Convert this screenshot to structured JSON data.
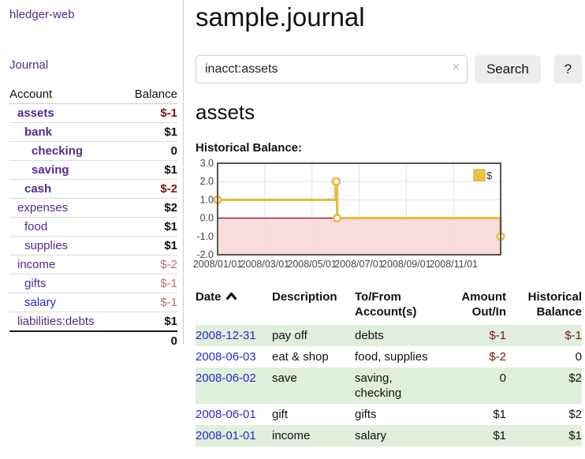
{
  "app": {
    "brand": "hledger-web",
    "nav_journal": "Journal"
  },
  "sidebar": {
    "header": {
      "account": "Account",
      "balance": "Balance"
    },
    "accounts": [
      {
        "name": "assets",
        "indent": 1,
        "bold": true,
        "balance": "$-1",
        "balance_class": "neg-strong",
        "link_class": ""
      },
      {
        "name": "bank",
        "indent": 2,
        "bold": true,
        "balance": "$1",
        "balance_class": "",
        "link_class": ""
      },
      {
        "name": "checking",
        "indent": 3,
        "bold": true,
        "balance": "0",
        "balance_class": "",
        "link_class": ""
      },
      {
        "name": "saving",
        "indent": 3,
        "bold": true,
        "balance": "$1",
        "balance_class": "",
        "link_class": ""
      },
      {
        "name": "cash",
        "indent": 2,
        "bold": true,
        "balance": "$-2",
        "balance_class": "neg-strong",
        "link_class": ""
      },
      {
        "name": "expenses",
        "indent": 1,
        "bold": false,
        "balance": "$2",
        "balance_class": "",
        "link_class": ""
      },
      {
        "name": "food",
        "indent": 2,
        "bold": false,
        "balance": "$1",
        "balance_class": "",
        "link_class": ""
      },
      {
        "name": "supplies",
        "indent": 2,
        "bold": false,
        "balance": "$1",
        "balance_class": "",
        "link_class": ""
      },
      {
        "name": "income",
        "indent": 1,
        "bold": false,
        "balance": "$-2",
        "balance_class": "neg-light",
        "link_class": ""
      },
      {
        "name": "gifts",
        "indent": 2,
        "bold": false,
        "balance": "$-1",
        "balance_class": "neg-light",
        "link_class": ""
      },
      {
        "name": "salary",
        "indent": 2,
        "bold": false,
        "balance": "$-1",
        "balance_class": "neg-light",
        "link_class": "unvisited"
      },
      {
        "name": "liabilities:debts",
        "indent": 1,
        "bold": false,
        "balance": "$1",
        "balance_class": "",
        "link_class": ""
      }
    ],
    "total": "0"
  },
  "main": {
    "title": "sample.journal",
    "search": {
      "query": "inacct:assets",
      "clear_icon": "×",
      "button": "Search",
      "help_button": "?"
    },
    "account_heading": "assets",
    "chart_label": "Historical Balance:"
  },
  "chart_data": {
    "type": "line",
    "step": true,
    "title": "Historical Balance:",
    "legend": [
      {
        "label": "$",
        "color": "#edc240"
      }
    ],
    "legend_position": "top-right",
    "grid": true,
    "ylim": [
      -2,
      3
    ],
    "y_ticks": [
      3.0,
      2.0,
      1.0,
      0.0,
      -1.0,
      -2.0
    ],
    "x_tick_labels": [
      "2008/01/01",
      "2008/03/01",
      "2008/05/01",
      "2008/07/01",
      "2008/09/01",
      "2008/11/01"
    ],
    "x_tick_months": [
      0,
      2,
      4,
      6,
      8,
      10
    ],
    "x_range_months": [
      0,
      12
    ],
    "points": [
      {
        "date": "2008-01-01",
        "value": 1
      },
      {
        "date": "2008-06-01",
        "value": 2
      },
      {
        "date": "2008-06-02",
        "value": 2
      },
      {
        "date": "2008-06-03",
        "value": 0
      },
      {
        "date": "2008-12-31",
        "value": -1
      }
    ]
  },
  "register": {
    "headers": {
      "date": "Date",
      "description": {
        "line1": "Description",
        "line2": ""
      },
      "tofrom": {
        "line1": "To/From",
        "line2": "Account(s)"
      },
      "amount": {
        "line1": "Amount",
        "line2": "Out/In"
      },
      "balance": {
        "line1": "Historical",
        "line2": "Balance"
      }
    },
    "sort_icon": "chevron-up",
    "rows": [
      {
        "date": "2008-12-31",
        "description": "pay off",
        "accounts": "debts",
        "amount": "$-1",
        "amount_negative": true,
        "balance": "$-1",
        "balance_negative": true,
        "shaded": true
      },
      {
        "date": "2008-06-03",
        "description": "eat & shop",
        "accounts": "food, supplies",
        "amount": "$-2",
        "amount_negative": true,
        "balance": "0",
        "balance_negative": false,
        "shaded": false
      },
      {
        "date": "2008-06-02",
        "description": "save",
        "accounts": "saving, checking",
        "amount": "0",
        "amount_negative": false,
        "balance": "$2",
        "balance_negative": false,
        "shaded": true
      },
      {
        "date": "2008-06-01",
        "description": "gift",
        "accounts": "gifts",
        "amount": "$1",
        "amount_negative": false,
        "balance": "$2",
        "balance_negative": false,
        "shaded": false
      },
      {
        "date": "2008-01-01",
        "description": "income",
        "accounts": "salary",
        "amount": "$1",
        "amount_negative": false,
        "balance": "$1",
        "balance_negative": false,
        "shaded": true
      }
    ]
  },
  "colors": {
    "link_visited_purple": "#552a8c",
    "link_blue": "#2929cc",
    "negative_strong": "#7c1414",
    "negative_light": "#bb6f73",
    "row_green": "#e0eedc",
    "chart_line": "#e9bc45",
    "chart_negative_region": "#fbdcdc",
    "chart_zero_line": "#8b1c1c",
    "chart_border": "#545454",
    "chart_grid": "#e4e4e4"
  }
}
